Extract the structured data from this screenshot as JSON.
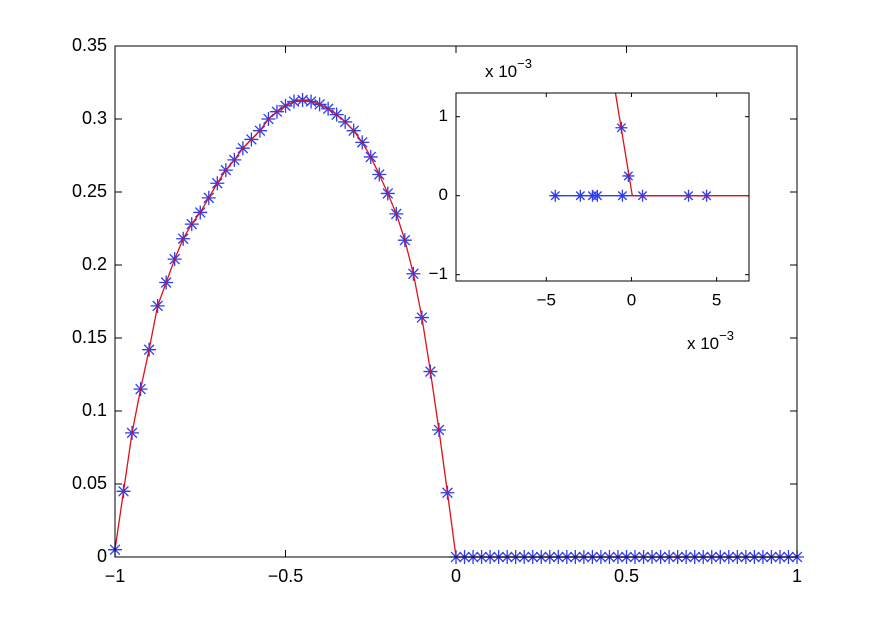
{
  "chart_data": [
    {
      "type": "line",
      "x": [
        -1,
        -0.975,
        -0.95,
        -0.925,
        -0.9,
        -0.875,
        -0.85,
        -0.825,
        -0.8,
        -0.775,
        -0.75,
        -0.725,
        -0.7,
        -0.675,
        -0.65,
        -0.625,
        -0.6,
        -0.575,
        -0.55,
        -0.525,
        -0.5,
        -0.475,
        -0.45,
        -0.425,
        -0.4,
        -0.375,
        -0.35,
        -0.325,
        -0.3,
        -0.275,
        -0.25,
        -0.225,
        -0.2,
        -0.175,
        -0.15,
        -0.125,
        -0.1,
        -0.075,
        -0.05,
        -0.025,
        0,
        0.025,
        0.05,
        0.075,
        0.1,
        0.125,
        0.15,
        0.175,
        0.2,
        0.225,
        0.25,
        0.275,
        0.3,
        0.325,
        0.35,
        0.375,
        0.4,
        0.425,
        0.45,
        0.475,
        0.5,
        0.525,
        0.55,
        0.575,
        0.6,
        0.625,
        0.65,
        0.675,
        0.7,
        0.725,
        0.75,
        0.775,
        0.8,
        0.825,
        0.85,
        0.875,
        0.9,
        0.925,
        0.95,
        0.975,
        1
      ],
      "series": [
        {
          "marker_color": "#2b3df0",
          "line_color": "#e0101a",
          "values": [
            0.005,
            0.045,
            0.085,
            0.115,
            0.142,
            0.172,
            0.188,
            0.204,
            0.218,
            0.228,
            0.236,
            0.246,
            0.256,
            0.265,
            0.272,
            0.28,
            0.286,
            0.292,
            0.3,
            0.305,
            0.309,
            0.312,
            0.313,
            0.312,
            0.31,
            0.307,
            0.303,
            0.298,
            0.292,
            0.284,
            0.274,
            0.262,
            0.249,
            0.235,
            0.217,
            0.194,
            0.164,
            0.127,
            0.087,
            0.044,
            0,
            0,
            0,
            0,
            0,
            0,
            0,
            0,
            0,
            0,
            0,
            0,
            0,
            0,
            0,
            0,
            0,
            0,
            0,
            0,
            0,
            0,
            0,
            0,
            0,
            0,
            0,
            0,
            0,
            0,
            0,
            0,
            0,
            0,
            0,
            0,
            0,
            0,
            0,
            0,
            0
          ]
        }
      ],
      "xlim": [
        -1,
        1
      ],
      "ylim": [
        0,
        0.35
      ],
      "xticks": [
        {
          "value": -1,
          "label": "−1"
        },
        {
          "value": -0.5,
          "label": "−0.5"
        },
        0,
        0.5,
        1
      ],
      "yticks": [
        0,
        0.05,
        0.1,
        0.15,
        0.2,
        0.25,
        0.3,
        0.35
      ]
    },
    {
      "type": "line",
      "series": [
        {
          "marker_color": "#2b3df0",
          "line_color": "#2b3df0",
          "x": [
            -0.00447,
            -0.003,
            -0.00229,
            -0.002,
            -0.00053,
            0.00065,
            0.00335,
            0.00441
          ],
          "values": [
            0,
            0,
            0,
            0,
            0,
            0,
            0,
            0
          ]
        },
        {
          "marker_color": "#2b3df0",
          "x": [
            -0.00059,
            -0.00018
          ],
          "values": [
            0.00086,
            0.00025
          ]
        },
        {
          "line_color": "#e0101a",
          "x": [
            -0.00094,
            5e-05,
            0.0069
          ],
          "values": [
            0.0013,
            0,
            0
          ]
        }
      ],
      "xlim": [
        -0.0103,
        0.0069
      ],
      "ylim": [
        -0.00108,
        0.0013
      ],
      "xticks": [
        {
          "value": -0.005,
          "label": "−5"
        },
        {
          "value": 0,
          "label": "0"
        },
        {
          "value": 0.005,
          "label": "5"
        }
      ],
      "yticks": [
        {
          "value": -0.001,
          "label": "−1"
        },
        {
          "value": 0,
          "label": "0"
        },
        {
          "value": 0.001,
          "label": "1"
        }
      ],
      "x_exponent": {
        "base": "x 10",
        "power": "−3"
      },
      "y_exponent": {
        "base": "x 10",
        "power": "−3"
      }
    }
  ]
}
